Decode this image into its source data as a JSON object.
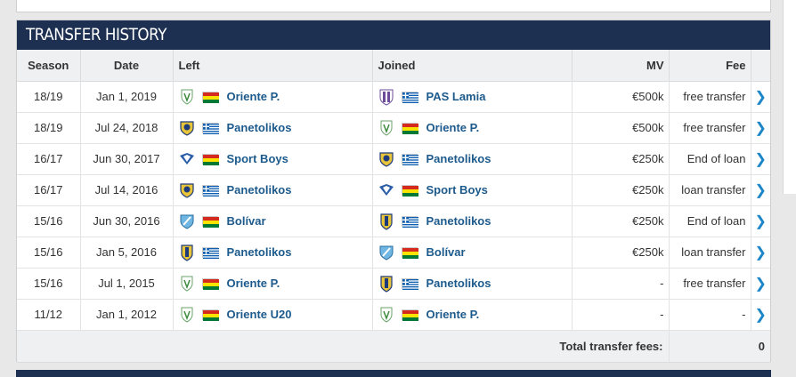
{
  "section_title": "TRANSFER HISTORY",
  "columns": [
    "Season",
    "Date",
    "Left",
    "Joined",
    "MV",
    "Fee"
  ],
  "rows": [
    {
      "season": "18/19",
      "date": "Jan 1, 2019",
      "left_club": "Oriente P.",
      "left_crest": "oriente",
      "left_flag": "bolivia",
      "joined_club": "PAS Lamia",
      "joined_crest": "lamia",
      "joined_flag": "greece",
      "mv": "€500k",
      "fee": "free transfer"
    },
    {
      "season": "18/19",
      "date": "Jul 24, 2018",
      "left_club": "Panetolikos",
      "left_crest": "panetolikos",
      "left_flag": "greece",
      "joined_club": "Oriente P.",
      "joined_crest": "oriente",
      "joined_flag": "bolivia",
      "mv": "€500k",
      "fee": "free transfer"
    },
    {
      "season": "16/17",
      "date": "Jun 30, 2017",
      "left_club": "Sport Boys",
      "left_crest": "sportboys",
      "left_flag": "bolivia",
      "joined_club": "Panetolikos",
      "joined_crest": "panetolikos",
      "joined_flag": "greece",
      "mv": "€250k",
      "fee": "End of loan"
    },
    {
      "season": "16/17",
      "date": "Jul 14, 2016",
      "left_club": "Panetolikos",
      "left_crest": "panetolikos",
      "left_flag": "greece",
      "joined_club": "Sport Boys",
      "joined_crest": "sportboys",
      "joined_flag": "bolivia",
      "mv": "€250k",
      "fee": "loan transfer"
    },
    {
      "season": "15/16",
      "date": "Jun 30, 2016",
      "left_club": "Bolívar",
      "left_crest": "bolivar",
      "left_flag": "bolivia",
      "joined_club": "Panetolikos",
      "joined_crest": "panetolikos2",
      "joined_flag": "greece",
      "mv": "€250k",
      "fee": "End of loan"
    },
    {
      "season": "15/16",
      "date": "Jan 5, 2016",
      "left_club": "Panetolikos",
      "left_crest": "panetolikos2",
      "left_flag": "greece",
      "joined_club": "Bolívar",
      "joined_crest": "bolivar",
      "joined_flag": "bolivia",
      "mv": "€250k",
      "fee": "loan transfer"
    },
    {
      "season": "15/16",
      "date": "Jul 1, 2015",
      "left_club": "Oriente P.",
      "left_crest": "oriente",
      "left_flag": "bolivia",
      "joined_club": "Panetolikos",
      "joined_crest": "panetolikos2",
      "joined_flag": "greece",
      "mv": "-",
      "fee": "free transfer"
    },
    {
      "season": "11/12",
      "date": "Jan 1, 2012",
      "left_club": "Oriente U20",
      "left_crest": "oriente",
      "left_flag": "bolivia",
      "joined_club": "Oriente P.",
      "joined_crest": "oriente",
      "joined_flag": "bolivia",
      "mv": "-",
      "fee": "-"
    }
  ],
  "footer": {
    "label": "Total transfer fees:",
    "value": "0"
  },
  "colors": {
    "header_bg": "#1d3051",
    "link": "#1d5a8c",
    "chevron": "#1d86c8"
  }
}
